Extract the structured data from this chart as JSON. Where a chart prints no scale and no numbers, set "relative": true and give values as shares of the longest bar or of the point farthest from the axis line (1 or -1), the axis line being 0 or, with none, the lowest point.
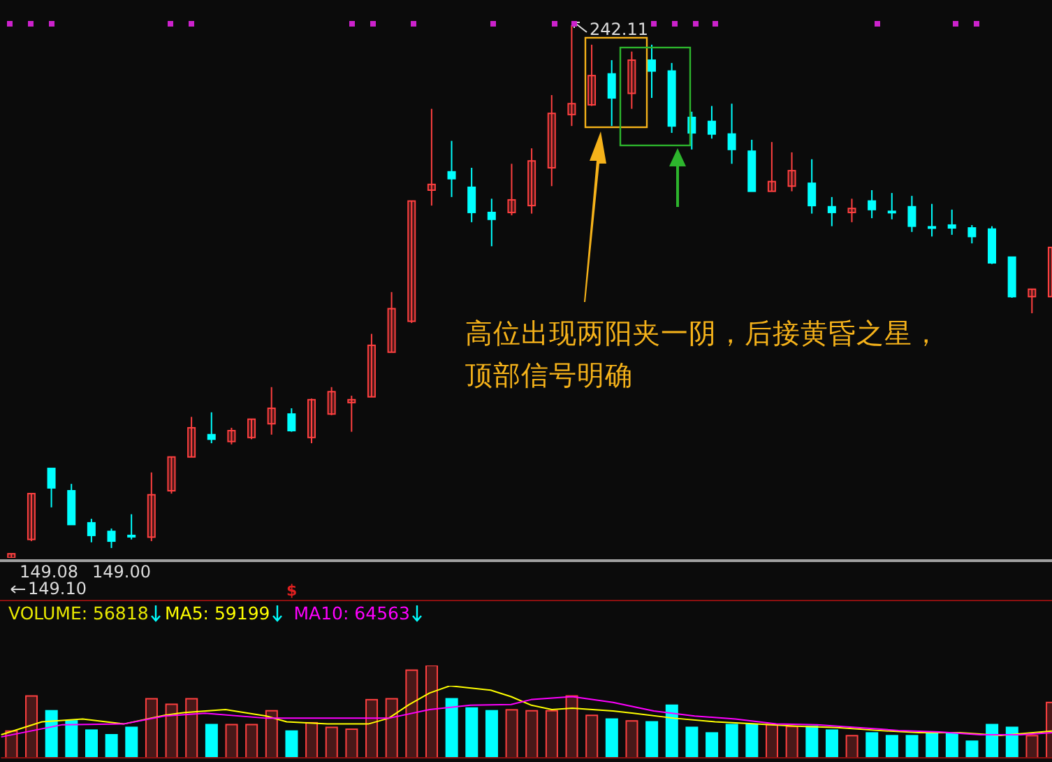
{
  "chart_data": [
    {
      "type": "candlestick",
      "categories": [
        null,
        null,
        null,
        null,
        null,
        null,
        null,
        null,
        null,
        null,
        null,
        null,
        null,
        null,
        null,
        null,
        null,
        null,
        null,
        null,
        null,
        null,
        null,
        null,
        null,
        null,
        null,
        null,
        null,
        null,
        null,
        null,
        null,
        null,
        null,
        null,
        null,
        null,
        null,
        null,
        null,
        null,
        null,
        null,
        null,
        null,
        null,
        null,
        null,
        null,
        null,
        null,
        null
      ],
      "ohlc": [
        [
          149.08,
          149.8,
          149.08,
          149.8
        ],
        [
          152.3,
          160.3,
          152.0,
          160.3
        ],
        [
          164.7,
          164.7,
          157.9,
          161.3
        ],
        [
          160.8,
          162.0,
          154.9,
          154.9
        ],
        [
          155.2,
          155.9,
          151.8,
          153.0
        ],
        [
          153.7,
          154.2,
          150.8,
          152.0
        ],
        [
          153.0,
          156.7,
          152.3,
          152.9
        ],
        [
          152.7,
          164.0,
          152.0,
          160.1
        ],
        [
          160.8,
          166.7,
          160.3,
          166.7
        ],
        [
          166.7,
          173.7,
          166.7,
          171.8
        ],
        [
          170.6,
          174.5,
          169.1,
          169.8
        ],
        [
          169.4,
          171.8,
          168.9,
          171.3
        ],
        [
          170.1,
          173.3,
          169.8,
          173.3
        ],
        [
          172.5,
          178.9,
          170.6,
          175.2
        ],
        [
          174.2,
          175.2,
          171.1,
          171.3
        ],
        [
          170.1,
          176.9,
          169.1,
          176.7
        ],
        [
          174.2,
          178.9,
          174.0,
          178.1
        ],
        [
          176.2,
          177.4,
          171.1,
          176.7
        ],
        [
          177.2,
          188.2,
          177.2,
          186.2
        ],
        [
          185.0,
          195.5,
          185.0,
          192.6
        ],
        [
          190.4,
          211.4,
          190.1,
          211.4
        ],
        [
          213.3,
          227.5,
          210.6,
          214.3
        ],
        [
          216.5,
          221.9,
          212.1,
          215.3
        ],
        [
          213.8,
          217.2,
          207.7,
          209.4
        ],
        [
          209.4,
          211.8,
          203.5,
          208.2
        ],
        [
          209.4,
          217.9,
          208.9,
          211.6
        ],
        [
          210.6,
          220.6,
          209.2,
          218.4
        ],
        [
          217.2,
          229.9,
          214.0,
          226.7
        ],
        [
          226.5,
          242.11,
          224.5,
          228.4
        ],
        [
          228.2,
          238.7,
          228.0,
          233.3
        ],
        [
          233.6,
          236.0,
          224.5,
          229.4
        ],
        [
          230.2,
          237.5,
          227.5,
          236.0
        ],
        [
          236.0,
          238.7,
          229.4,
          234.1
        ],
        [
          234.1,
          235.5,
          223.3,
          224.5
        ],
        [
          226.0,
          227.0,
          220.4,
          223.3
        ],
        [
          225.3,
          228.0,
          222.3,
          223.1
        ],
        [
          223.1,
          228.4,
          217.9,
          220.4
        ],
        [
          220.1,
          222.1,
          213.1,
          213.1
        ],
        [
          213.1,
          221.7,
          213.1,
          214.8
        ],
        [
          214.0,
          219.9,
          213.1,
          216.7
        ],
        [
          214.5,
          218.7,
          209.2,
          210.6
        ],
        [
          210.4,
          212.1,
          207.0,
          209.4
        ],
        [
          209.4,
          211.8,
          207.7,
          210.1
        ],
        [
          211.4,
          213.3,
          208.4,
          209.9
        ],
        [
          209.6,
          212.8,
          208.2,
          209.5
        ],
        [
          210.4,
          212.3,
          206.0,
          207.0
        ],
        [
          206.9,
          210.9,
          205.2,
          206.8
        ],
        [
          207.2,
          209.9,
          205.5,
          206.7
        ],
        [
          206.7,
          207.2,
          204.0,
          205.2
        ],
        [
          206.5,
          207.0,
          200.4,
          200.6
        ],
        [
          201.6,
          201.6,
          194.5,
          194.7
        ],
        [
          194.7,
          196.0,
          191.8,
          196.0
        ],
        [
          194.7,
          203.3,
          194.7,
          203.3
        ]
      ],
      "colors": [
        "#ff4040",
        "#ff4040",
        "#00ffff",
        "#00ffff",
        "#00ffff",
        "#00ffff",
        "#00ffff",
        "#ff4040",
        "#ff4040",
        "#ff4040",
        "#00ffff",
        "#ff4040",
        "#ff4040",
        "#ff4040",
        "#00ffff",
        "#ff4040",
        "#ff4040",
        "#ff4040",
        "#ff4040",
        "#ff4040",
        "#ff4040",
        "#ff4040",
        "#00ffff",
        "#00ffff",
        "#00ffff",
        "#ff4040",
        "#ff4040",
        "#ff4040",
        "#ff4040",
        "#ff4040",
        "#00ffff",
        "#ff4040",
        "#00ffff",
        "#00ffff",
        "#00ffff",
        "#00ffff",
        "#00ffff",
        "#00ffff",
        "#ff4040",
        "#ff4040",
        "#00ffff",
        "#00ffff",
        "#ff4040",
        "#00ffff",
        "#00ffff",
        "#00ffff",
        "#00ffff",
        "#00ffff",
        "#00ffff",
        "#00ffff",
        "#00ffff",
        "#ff4040",
        "#ff4040"
      ],
      "annotations": [
        "242.11",
        "149.08",
        "149.00",
        "149.10",
        "高位出现两阳夹一阴，后接黄昏之星，顶部信号明确"
      ]
    },
    {
      "type": "bar",
      "relative": true,
      "legend": "top left",
      "categories": [
        null,
        null,
        null,
        null,
        null,
        null,
        null,
        null,
        null,
        null,
        null,
        null,
        null,
        null,
        null,
        null,
        null,
        null,
        null,
        null,
        null,
        null,
        null,
        null,
        null,
        null,
        null,
        null,
        null,
        null,
        null,
        null,
        null,
        null,
        null,
        null,
        null,
        null,
        null,
        null,
        null,
        null,
        null,
        null,
        null,
        null,
        null,
        null,
        null,
        null,
        null,
        null,
        null
      ],
      "series": [
        {
          "name": "VOLUME: 56818",
          "values": [
            0.29,
            0.67,
            0.51,
            0.4,
            0.3,
            0.25,
            0.33,
            0.64,
            0.58,
            0.64,
            0.36,
            0.36,
            0.36,
            0.51,
            0.29,
            0.38,
            0.33,
            0.31,
            0.63,
            0.64,
            0.95,
            1,
            0.64,
            0.54,
            0.51,
            0.52,
            0.51,
            0.51,
            0.67,
            0.46,
            0.42,
            0.4,
            0.39,
            0.57,
            0.33,
            0.27,
            0.36,
            0.36,
            0.36,
            0.34,
            0.34,
            0.3,
            0.24,
            0.27,
            0.24,
            0.24,
            0.27,
            0.27,
            0.18,
            0.36,
            0.33,
            0.24,
            0.6
          ],
          "colors": [
            "#ff4040",
            "#ff4040",
            "#00ffff",
            "#00ffff",
            "#00ffff",
            "#00ffff",
            "#00ffff",
            "#ff4040",
            "#ff4040",
            "#ff4040",
            "#00ffff",
            "#ff4040",
            "#ff4040",
            "#ff4040",
            "#00ffff",
            "#ff4040",
            "#ff4040",
            "#ff4040",
            "#ff4040",
            "#ff4040",
            "#ff4040",
            "#ff4040",
            "#00ffff",
            "#00ffff",
            "#00ffff",
            "#ff4040",
            "#ff4040",
            "#ff4040",
            "#ff4040",
            "#ff4040",
            "#00ffff",
            "#ff4040",
            "#00ffff",
            "#00ffff",
            "#00ffff",
            "#00ffff",
            "#00ffff",
            "#00ffff",
            "#ff4040",
            "#ff4040",
            "#00ffff",
            "#00ffff",
            "#ff4040",
            "#00ffff",
            "#00ffff",
            "#00ffff",
            "#00ffff",
            "#00ffff",
            "#00ffff",
            "#00ffff",
            "#00ffff",
            "#ff4040",
            "#ff4040"
          ]
        }
      ],
      "annotations": [
        "$"
      ]
    },
    {
      "type": "line",
      "relative": true,
      "legend": "top left",
      "categories": [
        null,
        null,
        null,
        null,
        null,
        null,
        null,
        null,
        null,
        null,
        null,
        null,
        null,
        null,
        null,
        null,
        null,
        null,
        null,
        null,
        null,
        null,
        null,
        null,
        null,
        null,
        null,
        null,
        null,
        null,
        null,
        null,
        null,
        null,
        null,
        null,
        null,
        null,
        null,
        null,
        null,
        null,
        null,
        null,
        null,
        null,
        null,
        null,
        null,
        null,
        null,
        null,
        null
      ],
      "series": [
        {
          "name": "MA5: 59199",
          "color": "#ffff00",
          "values": [
            0.32,
            null,
            0.5,
            null,
            0.54,
            null,
            0.47,
            null,
            0.59,
            0.63,
            null,
            0.67,
            null,
            0.58,
            0.5,
            null,
            0.47,
            null,
            0.47,
            0.55,
            0.74,
            0.9,
            1,
            null,
            0.94,
            0.85,
            0.73,
            0.67,
            0.69,
            null,
            0.65,
            0.62,
            null,
            0.55,
            null,
            0.5,
            null,
            0.47,
            null,
            0.44,
            null,
            0.42,
            null,
            0.38,
            null,
            0.35,
            null,
            0.35,
            null,
            0.31,
            null,
            0.36,
            0.38
          ]
        },
        {
          "name": "MA10: 64563",
          "color": "#ff00ff",
          "values": [
            0.29,
            null,
            null,
            0.46,
            null,
            null,
            0.47,
            null,
            0.58,
            null,
            0.62,
            null,
            null,
            0.55,
            null,
            null,
            0.55,
            null,
            null,
            0.55,
            null,
            0.67,
            null,
            0.73,
            null,
            0.74,
            0.81,
            null,
            0.85,
            null,
            0.77,
            null,
            0.65,
            null,
            0.58,
            null,
            0.54,
            null,
            0.47,
            null,
            0.46,
            null,
            0.42,
            null,
            0.38,
            null,
            0.36,
            null,
            0.32,
            null,
            0.32,
            null,
            0.36
          ]
        }
      ]
    }
  ]
}
